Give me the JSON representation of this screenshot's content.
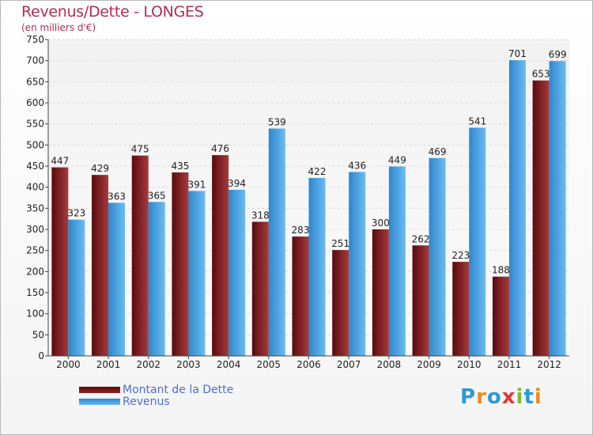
{
  "title": "Revenus/Dette - LONGES",
  "subtitle": "(en milliers d'€)",
  "colors": {
    "debt": "#7a1518",
    "revenue": "#3f9ee0",
    "title": "#b42c54"
  },
  "legend": {
    "debt_label": "Montant de la Dette",
    "revenue_label": "Revenus"
  },
  "logo": {
    "text": "Proxiti",
    "letters": [
      "P",
      "r",
      "o",
      "x",
      "i",
      "t",
      "i"
    ],
    "letter_colors": [
      "#2b9ad6",
      "#f08a1c",
      "#2b9ad6",
      "#e23a2f",
      "#7cb83a",
      "#2b9ad6",
      "#f08a1c"
    ]
  },
  "chart_data": {
    "type": "bar",
    "categories": [
      "2000",
      "2001",
      "2002",
      "2003",
      "2004",
      "2005",
      "2006",
      "2007",
      "2008",
      "2009",
      "2010",
      "2011",
      "2012"
    ],
    "series": [
      {
        "name": "Montant de la Dette",
        "values": [
          447,
          429,
          475,
          435,
          476,
          318,
          283,
          251,
          300,
          262,
          223,
          188,
          653
        ]
      },
      {
        "name": "Revenus",
        "values": [
          323,
          363,
          365,
          391,
          394,
          539,
          422,
          436,
          449,
          469,
          541,
          701,
          699
        ]
      }
    ],
    "ylim": [
      0,
      750
    ],
    "yticks": [
      0,
      50,
      100,
      150,
      200,
      250,
      300,
      350,
      400,
      450,
      500,
      550,
      600,
      650,
      700,
      750
    ],
    "grid": true,
    "legend_position": "bottom-left"
  }
}
